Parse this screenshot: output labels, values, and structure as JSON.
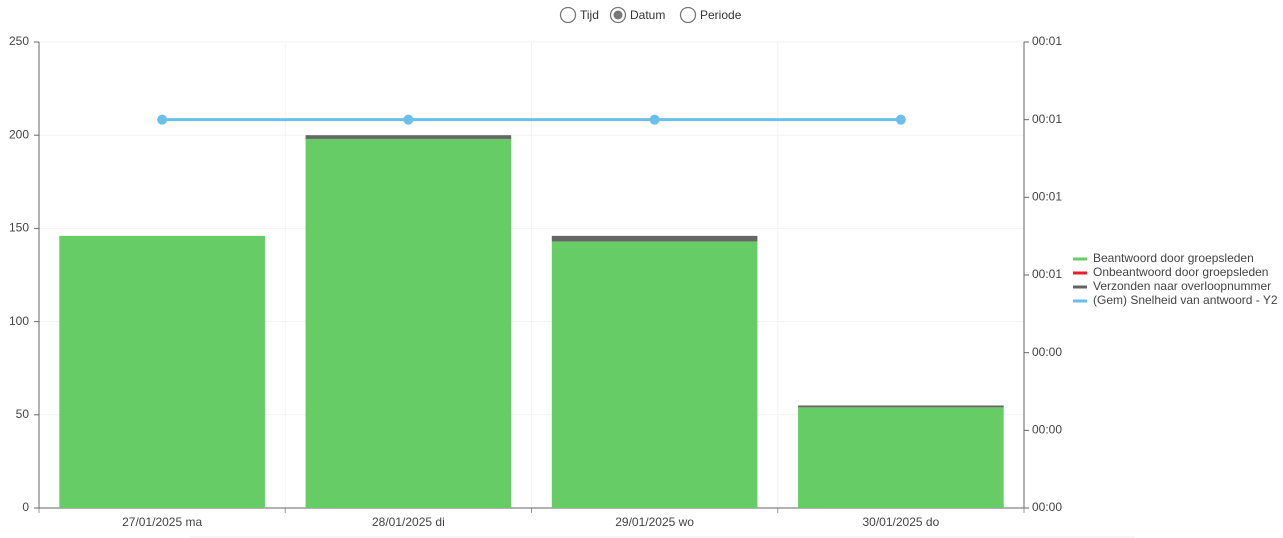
{
  "view_options": [
    {
      "label": "Tijd",
      "selected": false
    },
    {
      "label": "Datum",
      "selected": true
    },
    {
      "label": "Periode",
      "selected": false
    }
  ],
  "chart_data": {
    "type": "bar",
    "stacked": true,
    "categories": [
      "27/01/2025 ma",
      "28/01/2025 di",
      "29/01/2025 wo",
      "30/01/2025 do"
    ],
    "series": [
      {
        "name": "Beantwoord door groepsleden",
        "color": "#66cc66",
        "values": [
          146,
          198,
          143,
          54
        ]
      },
      {
        "name": "Onbeantwoord door groepsleden",
        "color": "#e8202a",
        "values": [
          0,
          0,
          0,
          0
        ]
      },
      {
        "name": "Verzonden naar overloopnummer",
        "color": "#666666",
        "values": [
          0,
          2,
          3,
          1
        ]
      },
      {
        "name": "(Gem) Snelheid van antwoord - Y2",
        "color": "#6bbfea",
        "type": "line",
        "axis": "y2",
        "values": [
          1.0,
          1.0,
          1.0,
          1.0
        ]
      }
    ],
    "ylim": [
      0,
      250
    ],
    "yticks": [
      0,
      50,
      100,
      150,
      200,
      250
    ],
    "y2lim": [
      0,
      1.2
    ],
    "y2ticks": [
      {
        "value": 0,
        "label": "00:00"
      },
      {
        "value": 0.2,
        "label": "00:00"
      },
      {
        "value": 0.4,
        "label": "00:00"
      },
      {
        "value": 0.6,
        "label": "00:01"
      },
      {
        "value": 0.8,
        "label": "00:01"
      },
      {
        "value": 1.0,
        "label": "00:01"
      },
      {
        "value": 1.2,
        "label": "00:01"
      }
    ],
    "grid": true,
    "legend": "right"
  }
}
